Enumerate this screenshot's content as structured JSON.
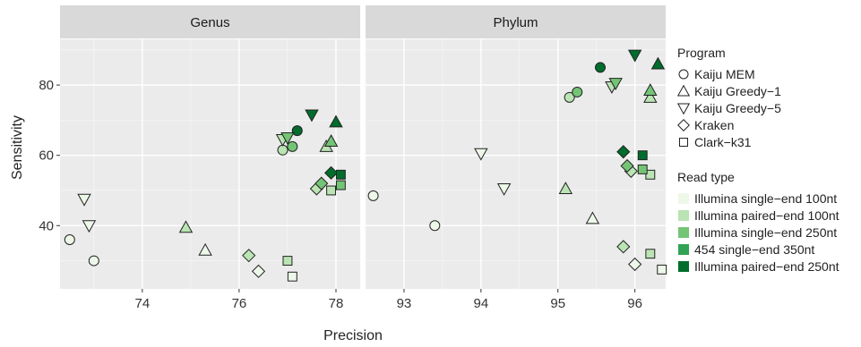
{
  "chart_data": {
    "type": "scatter",
    "xlabel": "Precision",
    "ylabel": "Sensitivity",
    "ylim": [
      22,
      93
    ],
    "y_ticks": [
      40,
      60,
      80
    ],
    "grid": true,
    "legend_position": "right",
    "program_legend": {
      "title": "Program",
      "items": [
        {
          "name": "Kaiju MEM",
          "shape": "circle"
        },
        {
          "name": "Kaiju Greedy−1",
          "shape": "triangle-up"
        },
        {
          "name": "Kaiju Greedy−5",
          "shape": "triangle-down"
        },
        {
          "name": "Kraken",
          "shape": "diamond"
        },
        {
          "name": "Clark−k31",
          "shape": "square"
        }
      ]
    },
    "readtype_legend": {
      "title": "Read type",
      "items": [
        {
          "name": "Illumina single−end 100nt",
          "color": "#edf8e9"
        },
        {
          "name": "Illumina paired−end 100nt",
          "color": "#bae4b3"
        },
        {
          "name": "Illumina single−end 250nt",
          "color": "#74c476"
        },
        {
          "name": "454 single−end 350nt",
          "color": "#31a354"
        },
        {
          "name": "Illumina paired−end 250nt",
          "color": "#006d2c"
        }
      ]
    },
    "panels": [
      {
        "title": "Genus",
        "xlim": [
          72.3,
          78.5
        ],
        "x_ticks": [
          74,
          76,
          78
        ],
        "points": [
          {
            "program": "Kaiju MEM",
            "read_type": "Illumina single−end 100nt",
            "x": 72.5,
            "y": 36
          },
          {
            "program": "Kaiju MEM",
            "read_type": "Illumina single−end 100nt",
            "x": 73.0,
            "y": 30
          },
          {
            "program": "Kaiju MEM",
            "read_type": "Illumina paired−end 100nt",
            "x": 76.9,
            "y": 61.5
          },
          {
            "program": "Kaiju MEM",
            "read_type": "Illumina single−end 250nt",
            "x": 77.1,
            "y": 62.5
          },
          {
            "program": "Kaiju MEM",
            "read_type": "Illumina paired−end 250nt",
            "x": 77.2,
            "y": 67
          },
          {
            "program": "Kaiju Greedy−1",
            "read_type": "Illumina paired−end 100nt",
            "x": 74.9,
            "y": 39.5
          },
          {
            "program": "Kaiju Greedy−1",
            "read_type": "Illumina single−end 100nt",
            "x": 75.3,
            "y": 33
          },
          {
            "program": "Kaiju Greedy−1",
            "read_type": "Illumina paired−end 100nt",
            "x": 77.8,
            "y": 62.5
          },
          {
            "program": "Kaiju Greedy−1",
            "read_type": "Illumina single−end 250nt",
            "x": 77.9,
            "y": 64
          },
          {
            "program": "Kaiju Greedy−1",
            "read_type": "Illumina paired−end 250nt",
            "x": 78.0,
            "y": 69.5
          },
          {
            "program": "Kaiju Greedy−5",
            "read_type": "Illumina single−end 100nt",
            "x": 72.8,
            "y": 47.5
          },
          {
            "program": "Kaiju Greedy−5",
            "read_type": "Illumina single−end 100nt",
            "x": 72.9,
            "y": 40
          },
          {
            "program": "Kaiju Greedy−5",
            "read_type": "Illumina paired−end 100nt",
            "x": 76.9,
            "y": 64.5
          },
          {
            "program": "Kaiju Greedy−5",
            "read_type": "Illumina single−end 250nt",
            "x": 77.0,
            "y": 65
          },
          {
            "program": "Kaiju Greedy−5",
            "read_type": "Illumina paired−end 250nt",
            "x": 77.5,
            "y": 71.5
          },
          {
            "program": "Kraken",
            "read_type": "Illumina paired−end 100nt",
            "x": 76.2,
            "y": 31.5
          },
          {
            "program": "Kraken",
            "read_type": "Illumina single−end 100nt",
            "x": 76.4,
            "y": 27
          },
          {
            "program": "Kraken",
            "read_type": "Illumina paired−end 100nt",
            "x": 77.6,
            "y": 50.5
          },
          {
            "program": "Kraken",
            "read_type": "Illumina single−end 250nt",
            "x": 77.7,
            "y": 52
          },
          {
            "program": "Kraken",
            "read_type": "Illumina paired−end 250nt",
            "x": 77.9,
            "y": 55
          },
          {
            "program": "Clark−k31",
            "read_type": "Illumina paired−end 100nt",
            "x": 77.0,
            "y": 30
          },
          {
            "program": "Clark−k31",
            "read_type": "Illumina single−end 100nt",
            "x": 77.1,
            "y": 25.5
          },
          {
            "program": "Clark−k31",
            "read_type": "Illumina paired−end 100nt",
            "x": 77.9,
            "y": 50
          },
          {
            "program": "Clark−k31",
            "read_type": "Illumina single−end 250nt",
            "x": 78.1,
            "y": 51.5
          },
          {
            "program": "Clark−k31",
            "read_type": "Illumina paired−end 250nt",
            "x": 78.1,
            "y": 54.5
          }
        ]
      },
      {
        "title": "Phylum",
        "xlim": [
          92.5,
          96.4
        ],
        "x_ticks": [
          93,
          94,
          95,
          96
        ],
        "points": [
          {
            "program": "Kaiju MEM",
            "read_type": "Illumina single−end 100nt",
            "x": 92.6,
            "y": 48.5
          },
          {
            "program": "Kaiju MEM",
            "read_type": "Illumina single−end 100nt",
            "x": 93.4,
            "y": 40
          },
          {
            "program": "Kaiju MEM",
            "read_type": "Illumina paired−end 100nt",
            "x": 95.15,
            "y": 76.5
          },
          {
            "program": "Kaiju MEM",
            "read_type": "Illumina single−end 250nt",
            "x": 95.25,
            "y": 78
          },
          {
            "program": "Kaiju MEM",
            "read_type": "Illumina paired−end 250nt",
            "x": 95.55,
            "y": 85
          },
          {
            "program": "Kaiju Greedy−1",
            "read_type": "Illumina paired−end 100nt",
            "x": 95.1,
            "y": 50.5
          },
          {
            "program": "Kaiju Greedy−1",
            "read_type": "Illumina single−end 100nt",
            "x": 95.45,
            "y": 42
          },
          {
            "program": "Kaiju Greedy−1",
            "read_type": "Illumina paired−end 100nt",
            "x": 96.2,
            "y": 76.5
          },
          {
            "program": "Kaiju Greedy−1",
            "read_type": "Illumina single−end 250nt",
            "x": 96.2,
            "y": 78.5
          },
          {
            "program": "Kaiju Greedy−1",
            "read_type": "Illumina paired−end 250nt",
            "x": 96.3,
            "y": 86
          },
          {
            "program": "Kaiju Greedy−5",
            "read_type": "Illumina single−end 100nt",
            "x": 94.0,
            "y": 60.5
          },
          {
            "program": "Kaiju Greedy−5",
            "read_type": "Illumina single−end 100nt",
            "x": 94.3,
            "y": 50.5
          },
          {
            "program": "Kaiju Greedy−5",
            "read_type": "Illumina paired−end 100nt",
            "x": 95.7,
            "y": 79.5
          },
          {
            "program": "Kaiju Greedy−5",
            "read_type": "Illumina single−end 250nt",
            "x": 95.75,
            "y": 80.5
          },
          {
            "program": "Kaiju Greedy−5",
            "read_type": "Illumina paired−end 250nt",
            "x": 96.0,
            "y": 88.5
          },
          {
            "program": "Kraken",
            "read_type": "Illumina paired−end 100nt",
            "x": 95.85,
            "y": 34
          },
          {
            "program": "Kraken",
            "read_type": "Illumina single−end 100nt",
            "x": 96.0,
            "y": 29
          },
          {
            "program": "Kraken",
            "read_type": "Illumina paired−end 100nt",
            "x": 95.95,
            "y": 55.5
          },
          {
            "program": "Kraken",
            "read_type": "Illumina single−end 250nt",
            "x": 95.9,
            "y": 57
          },
          {
            "program": "Kraken",
            "read_type": "Illumina paired−end 250nt",
            "x": 95.85,
            "y": 61
          },
          {
            "program": "Clark−k31",
            "read_type": "Illumina paired−end 100nt",
            "x": 96.2,
            "y": 32
          },
          {
            "program": "Clark−k31",
            "read_type": "Illumina single−end 100nt",
            "x": 96.35,
            "y": 27.5
          },
          {
            "program": "Clark−k31",
            "read_type": "Illumina paired−end 100nt",
            "x": 96.2,
            "y": 54.5
          },
          {
            "program": "Clark−k31",
            "read_type": "Illumina single−end 250nt",
            "x": 96.1,
            "y": 56
          },
          {
            "program": "Clark−k31",
            "read_type": "Illumina paired−end 250nt",
            "x": 96.1,
            "y": 60
          }
        ]
      }
    ]
  }
}
